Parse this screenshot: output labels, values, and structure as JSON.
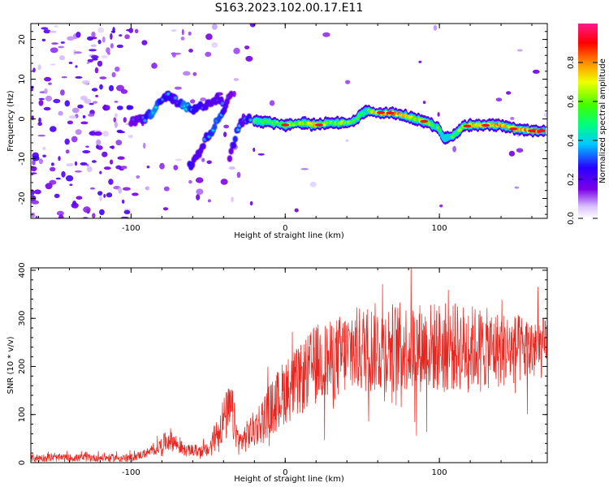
{
  "title": "S163.2023.102.00.17.E11",
  "colors": {
    "snr_line": "#e8251e",
    "ridge_palette": [
      "#6a00d8",
      "#3a00ff",
      "#00d8ff",
      "#00ff40",
      "#ffff00",
      "#ff8c00",
      "#ff0000",
      "#ff1493"
    ]
  },
  "chart_data": [
    {
      "type": "heatmap",
      "xlabel": "Height of straight line (km)",
      "ylabel": "Frequency (Hz)",
      "xlim": [
        -165,
        170
      ],
      "ylim": [
        -25,
        24
      ],
      "xticks": [
        -100,
        0,
        100
      ],
      "yticks": [
        -20,
        -10,
        0,
        10,
        20
      ],
      "grid": false,
      "colorbar": {
        "label": "Normalized spectral amplitude",
        "range": [
          0,
          1
        ],
        "ticks": [
          "0.0",
          "0.2",
          "0.4",
          "0.6",
          "0.8"
        ]
      },
      "ridge": {
        "x": [
          -20,
          -10,
          0,
          10,
          20,
          30,
          40,
          45,
          50,
          55,
          60,
          70,
          80,
          90,
          95,
          100,
          103,
          110,
          115,
          120,
          130,
          140,
          150,
          160,
          168
        ],
        "y": [
          -0.5,
          -0.8,
          -1.5,
          -1.0,
          -1.5,
          -1.0,
          -1.0,
          -0.5,
          1.5,
          2.0,
          1.5,
          1.5,
          0.5,
          -0.5,
          -1.5,
          -2.5,
          -5.0,
          -4.0,
          -2.0,
          -1.5,
          -1.5,
          -1.5,
          -2.5,
          -3.0,
          -3.0
        ],
        "amp": [
          0.5,
          0.55,
          0.65,
          0.65,
          0.75,
          0.6,
          0.65,
          0.5,
          0.5,
          0.6,
          0.8,
          0.85,
          0.7,
          0.7,
          0.6,
          0.5,
          0.45,
          0.6,
          0.65,
          0.75,
          0.8,
          0.8,
          0.75,
          0.85,
          0.9
        ]
      },
      "secondary_ridges": [
        {
          "x": [
            -100,
            -92,
            -85,
            -80,
            -75,
            -70,
            -65,
            -60,
            -55,
            -50,
            -45,
            -40
          ],
          "y": [
            -1,
            0,
            2,
            5,
            6,
            4,
            3,
            2,
            3,
            4,
            5,
            4
          ],
          "amp": [
            0.25,
            0.3,
            0.45,
            0.35,
            0.35,
            0.3,
            0.45,
            0.35,
            0.35,
            0.3,
            0.3,
            0.3
          ]
        },
        {
          "x": [
            -62,
            -58,
            -54,
            -50,
            -46,
            -42,
            -38,
            -35
          ],
          "y": [
            -12,
            -10,
            -7,
            -4,
            -2,
            1,
            4,
            7
          ],
          "amp": [
            0.35,
            0.3,
            0.3,
            0.35,
            0.4,
            0.4,
            0.3,
            0.25
          ]
        },
        {
          "x": [
            -36,
            -34,
            -32,
            -30,
            -28,
            -26,
            -24,
            -22
          ],
          "y": [
            -10,
            -7,
            -4,
            -2,
            -1,
            0,
            0,
            0
          ],
          "amp": [
            0.25,
            0.3,
            0.4,
            0.35,
            0.3,
            0.3,
            0.35,
            0.35
          ]
        }
      ]
    },
    {
      "type": "line",
      "xlabel": "Height of straight line (km)",
      "ylabel": "SNR (10 * v/v)",
      "xlim": [
        -165,
        170
      ],
      "ylim": [
        0,
        405
      ],
      "xticks": [
        -100,
        0,
        100
      ],
      "yticks": [
        0,
        100,
        200,
        300,
        400
      ],
      "grid": false,
      "envelope": {
        "x": [
          -165,
          -100,
          -85,
          -75,
          -65,
          -50,
          -40,
          -35,
          -30,
          -20,
          -10,
          0,
          10,
          20,
          30,
          40,
          60,
          80,
          100,
          120,
          140,
          160,
          170
        ],
        "y": [
          10,
          10,
          25,
          50,
          25,
          25,
          90,
          110,
          40,
          70,
          110,
          150,
          170,
          210,
          210,
          230,
          240,
          240,
          240,
          240,
          235,
          235,
          240
        ],
        "noise": [
          8,
          8,
          10,
          25,
          12,
          14,
          50,
          60,
          25,
          40,
          55,
          70,
          75,
          80,
          85,
          90,
          95,
          95,
          95,
          90,
          80,
          70,
          60
        ]
      }
    }
  ]
}
